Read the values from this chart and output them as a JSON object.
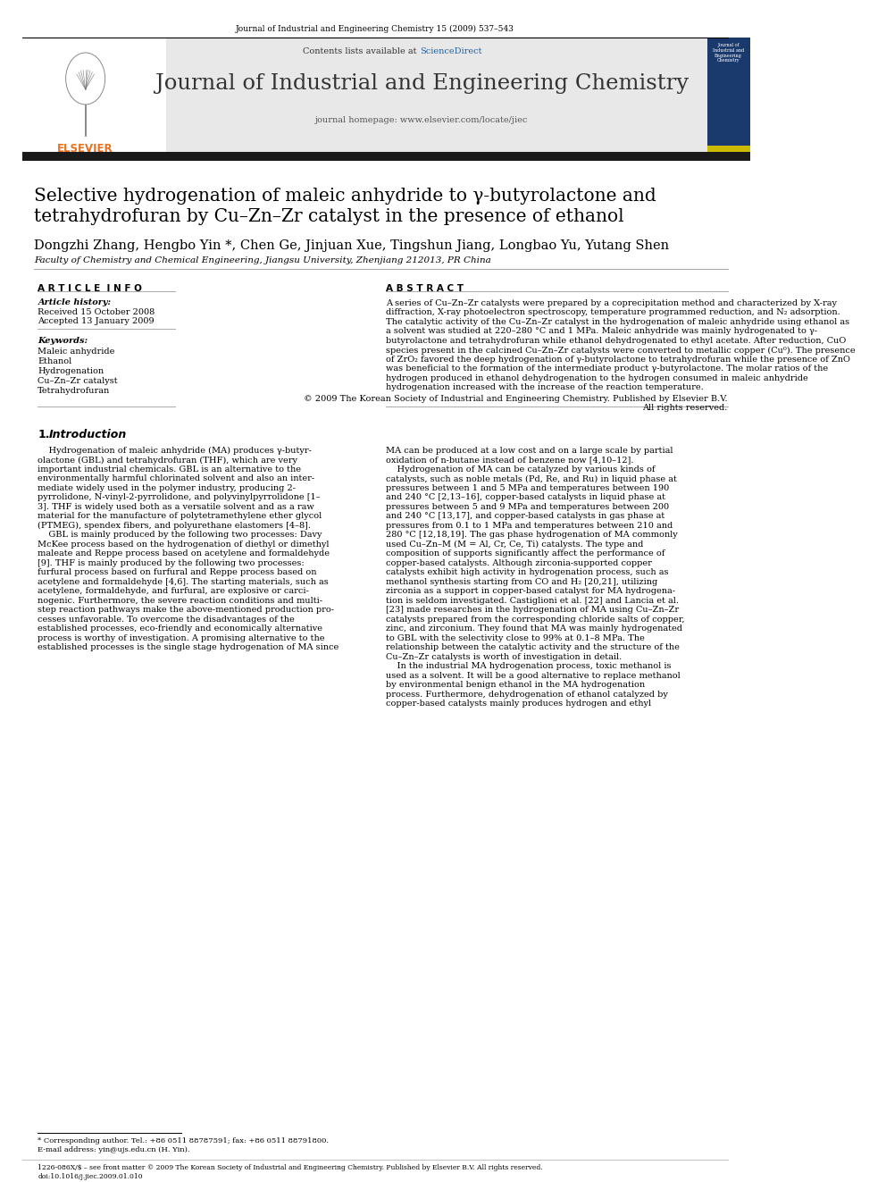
{
  "page_bg": "#ffffff",
  "header_journal_text": "Journal of Industrial and Engineering Chemistry 15 (2009) 537–543",
  "sciencedirect_color": "#2060a0",
  "journal_title": "Journal of Industrial and Engineering Chemistry",
  "journal_homepage": "journal homepage: www.elsevier.com/locate/jiec",
  "header_bg": "#e8e8e8",
  "dark_bar_color": "#1a1a1a",
  "paper_title_line1": "Selective hydrogenation of maleic anhydride to γ-butyrolactone and",
  "paper_title_line2": "tetrahydrofuran by Cu–Zn–Zr catalyst in the presence of ethanol",
  "authors": "Dongzhi Zhang, Hengbo Yin *, Chen Ge, Jinjuan Xue, Tingshun Jiang, Longbao Yu, Yutang Shen",
  "affiliation": "Faculty of Chemistry and Chemical Engineering, Jiangsu University, Zhenjiang 212013, PR China",
  "article_info_title": "A R T I C L E  I N F O",
  "abstract_title": "A B S T R A C T",
  "article_history_label": "Article history:",
  "received": "Received 15 October 2008",
  "accepted": "Accepted 13 January 2009",
  "keywords_label": "Keywords:",
  "keywords": [
    "Maleic anhydride",
    "Ethanol",
    "Hydrogenation",
    "Cu–Zn–Zr catalyst",
    "Tetrahydrofuran"
  ],
  "abstract_lines": [
    "A series of Cu–Zn–Zr catalysts were prepared by a coprecipitation method and characterized by X-ray",
    "diffraction, X-ray photoelectron spectroscopy, temperature programmed reduction, and N₂ adsorption.",
    "The catalytic activity of the Cu–Zn–Zr catalyst in the hydrogenation of maleic anhydride using ethanol as",
    "a solvent was studied at 220–280 °C and 1 MPa. Maleic anhydride was mainly hydrogenated to γ-",
    "butyrolactone and tetrahydrofuran while ethanol dehydrogenated to ethyl acetate. After reduction, CuO",
    "species present in the calcined Cu–Zn–Zr catalysts were converted to metallic copper (Cu⁰). The presence",
    "of ZrO₂ favored the deep hydrogenation of γ-butyrolactone to tetrahydrofuran while the presence of ZnO",
    "was beneficial to the formation of the intermediate product γ-butyrolactone. The molar ratios of the",
    "hydrogen produced in ethanol dehydrogenation to the hydrogen consumed in maleic anhydride",
    "hydrogenation increased with the increase of the reaction temperature."
  ],
  "abstract_copyright1": "© 2009 The Korean Society of Industrial and Engineering Chemistry. Published by Elsevier B.V.",
  "abstract_copyright2": "All rights reserved.",
  "intro_title_num": "1.",
  "intro_title_word": "Introduction",
  "col1_lines": [
    "    Hydrogenation of maleic anhydride (MA) produces γ-butyr-",
    "olactone (GBL) and tetrahydrofuran (THF), which are very",
    "important industrial chemicals. GBL is an alternative to the",
    "environmentally harmful chlorinated solvent and also an inter-",
    "mediate widely used in the polymer industry, producing 2-",
    "pyrrolidone, N-vinyl-2-pyrrolidone, and polyvinylpyrrolidone [1–",
    "3]. THF is widely used both as a versatile solvent and as a raw",
    "material for the manufacture of polytetramethylene ether glycol",
    "(PTMEG), spendex fibers, and polyurethane elastomers [4–8].",
    "    GBL is mainly produced by the following two processes: Davy",
    "McKee process based on the hydrogenation of diethyl or dimethyl",
    "maleate and Reppe process based on acetylene and formaldehyde",
    "[9]. THF is mainly produced by the following two processes:",
    "furfural process based on furfural and Reppe process based on",
    "acetylene and formaldehyde [4,6]. The starting materials, such as",
    "acetylene, formaldehyde, and furfural, are explosive or carci-",
    "nogenic. Furthermore, the severe reaction conditions and multi-",
    "step reaction pathways make the above-mentioned production pro-",
    "cesses unfavorable. To overcome the disadvantages of the",
    "established processes, eco-friendly and economically alternative",
    "process is worthy of investigation. A promising alternative to the",
    "established processes is the single stage hydrogenation of MA since"
  ],
  "col2_lines": [
    "MA can be produced at a low cost and on a large scale by partial",
    "oxidation of n-butane instead of benzene now [4,10–12].",
    "    Hydrogenation of MA can be catalyzed by various kinds of",
    "catalysts, such as noble metals (Pd, Re, and Ru) in liquid phase at",
    "pressures between 1 and 5 MPa and temperatures between 190",
    "and 240 °C [2,13–16], copper-based catalysts in liquid phase at",
    "pressures between 5 and 9 MPa and temperatures between 200",
    "and 240 °C [13,17], and copper-based catalysts in gas phase at",
    "pressures from 0.1 to 1 MPa and temperatures between 210 and",
    "280 °C [12,18,19]. The gas phase hydrogenation of MA commonly",
    "used Cu–Zn–M (M = Al, Cr, Ce, Ti) catalysts. The type and",
    "composition of supports significantly affect the performance of",
    "copper-based catalysts. Although zirconia-supported copper",
    "catalysts exhibit high activity in hydrogenation process, such as",
    "methanol synthesis starting from CO and H₂ [20,21], utilizing",
    "zirconia as a support in copper-based catalyst for MA hydrogena-",
    "tion is seldom investigated. Castiglioni et al. [22] and Lancia et al.",
    "[23] made researches in the hydrogenation of MA using Cu–Zn–Zr",
    "catalysts prepared from the corresponding chloride salts of copper,",
    "zinc, and zirconium. They found that MA was mainly hydrogenated",
    "to GBL with the selectivity close to 99% at 0.1–8 MPa. The",
    "relationship between the catalytic activity and the structure of the",
    "Cu–Zn–Zr catalysts is worth of investigation in detail.",
    "    In the industrial MA hydrogenation process, toxic methanol is",
    "used as a solvent. It will be a good alternative to replace methanol",
    "by environmental benign ethanol in the MA hydrogenation",
    "process. Furthermore, dehydrogenation of ethanol catalyzed by",
    "copper-based catalysts mainly produces hydrogen and ethyl"
  ],
  "footnote_star": "* Corresponding author. Tel.: +86 0511 88787591; fax: +86 0511 88791800.",
  "footnote_email": "E-mail address: yin@ujs.edu.cn (H. Yin).",
  "footer_text": "1226-086X/$ – see front matter © 2009 The Korean Society of Industrial and Engineering Chemistry. Published by Elsevier B.V. All rights reserved.",
  "footer_doi": "doi:10.1016/j.jiec.2009.01.010",
  "orange_color": "#e87020",
  "blue_header_color": "#1a3a6e"
}
